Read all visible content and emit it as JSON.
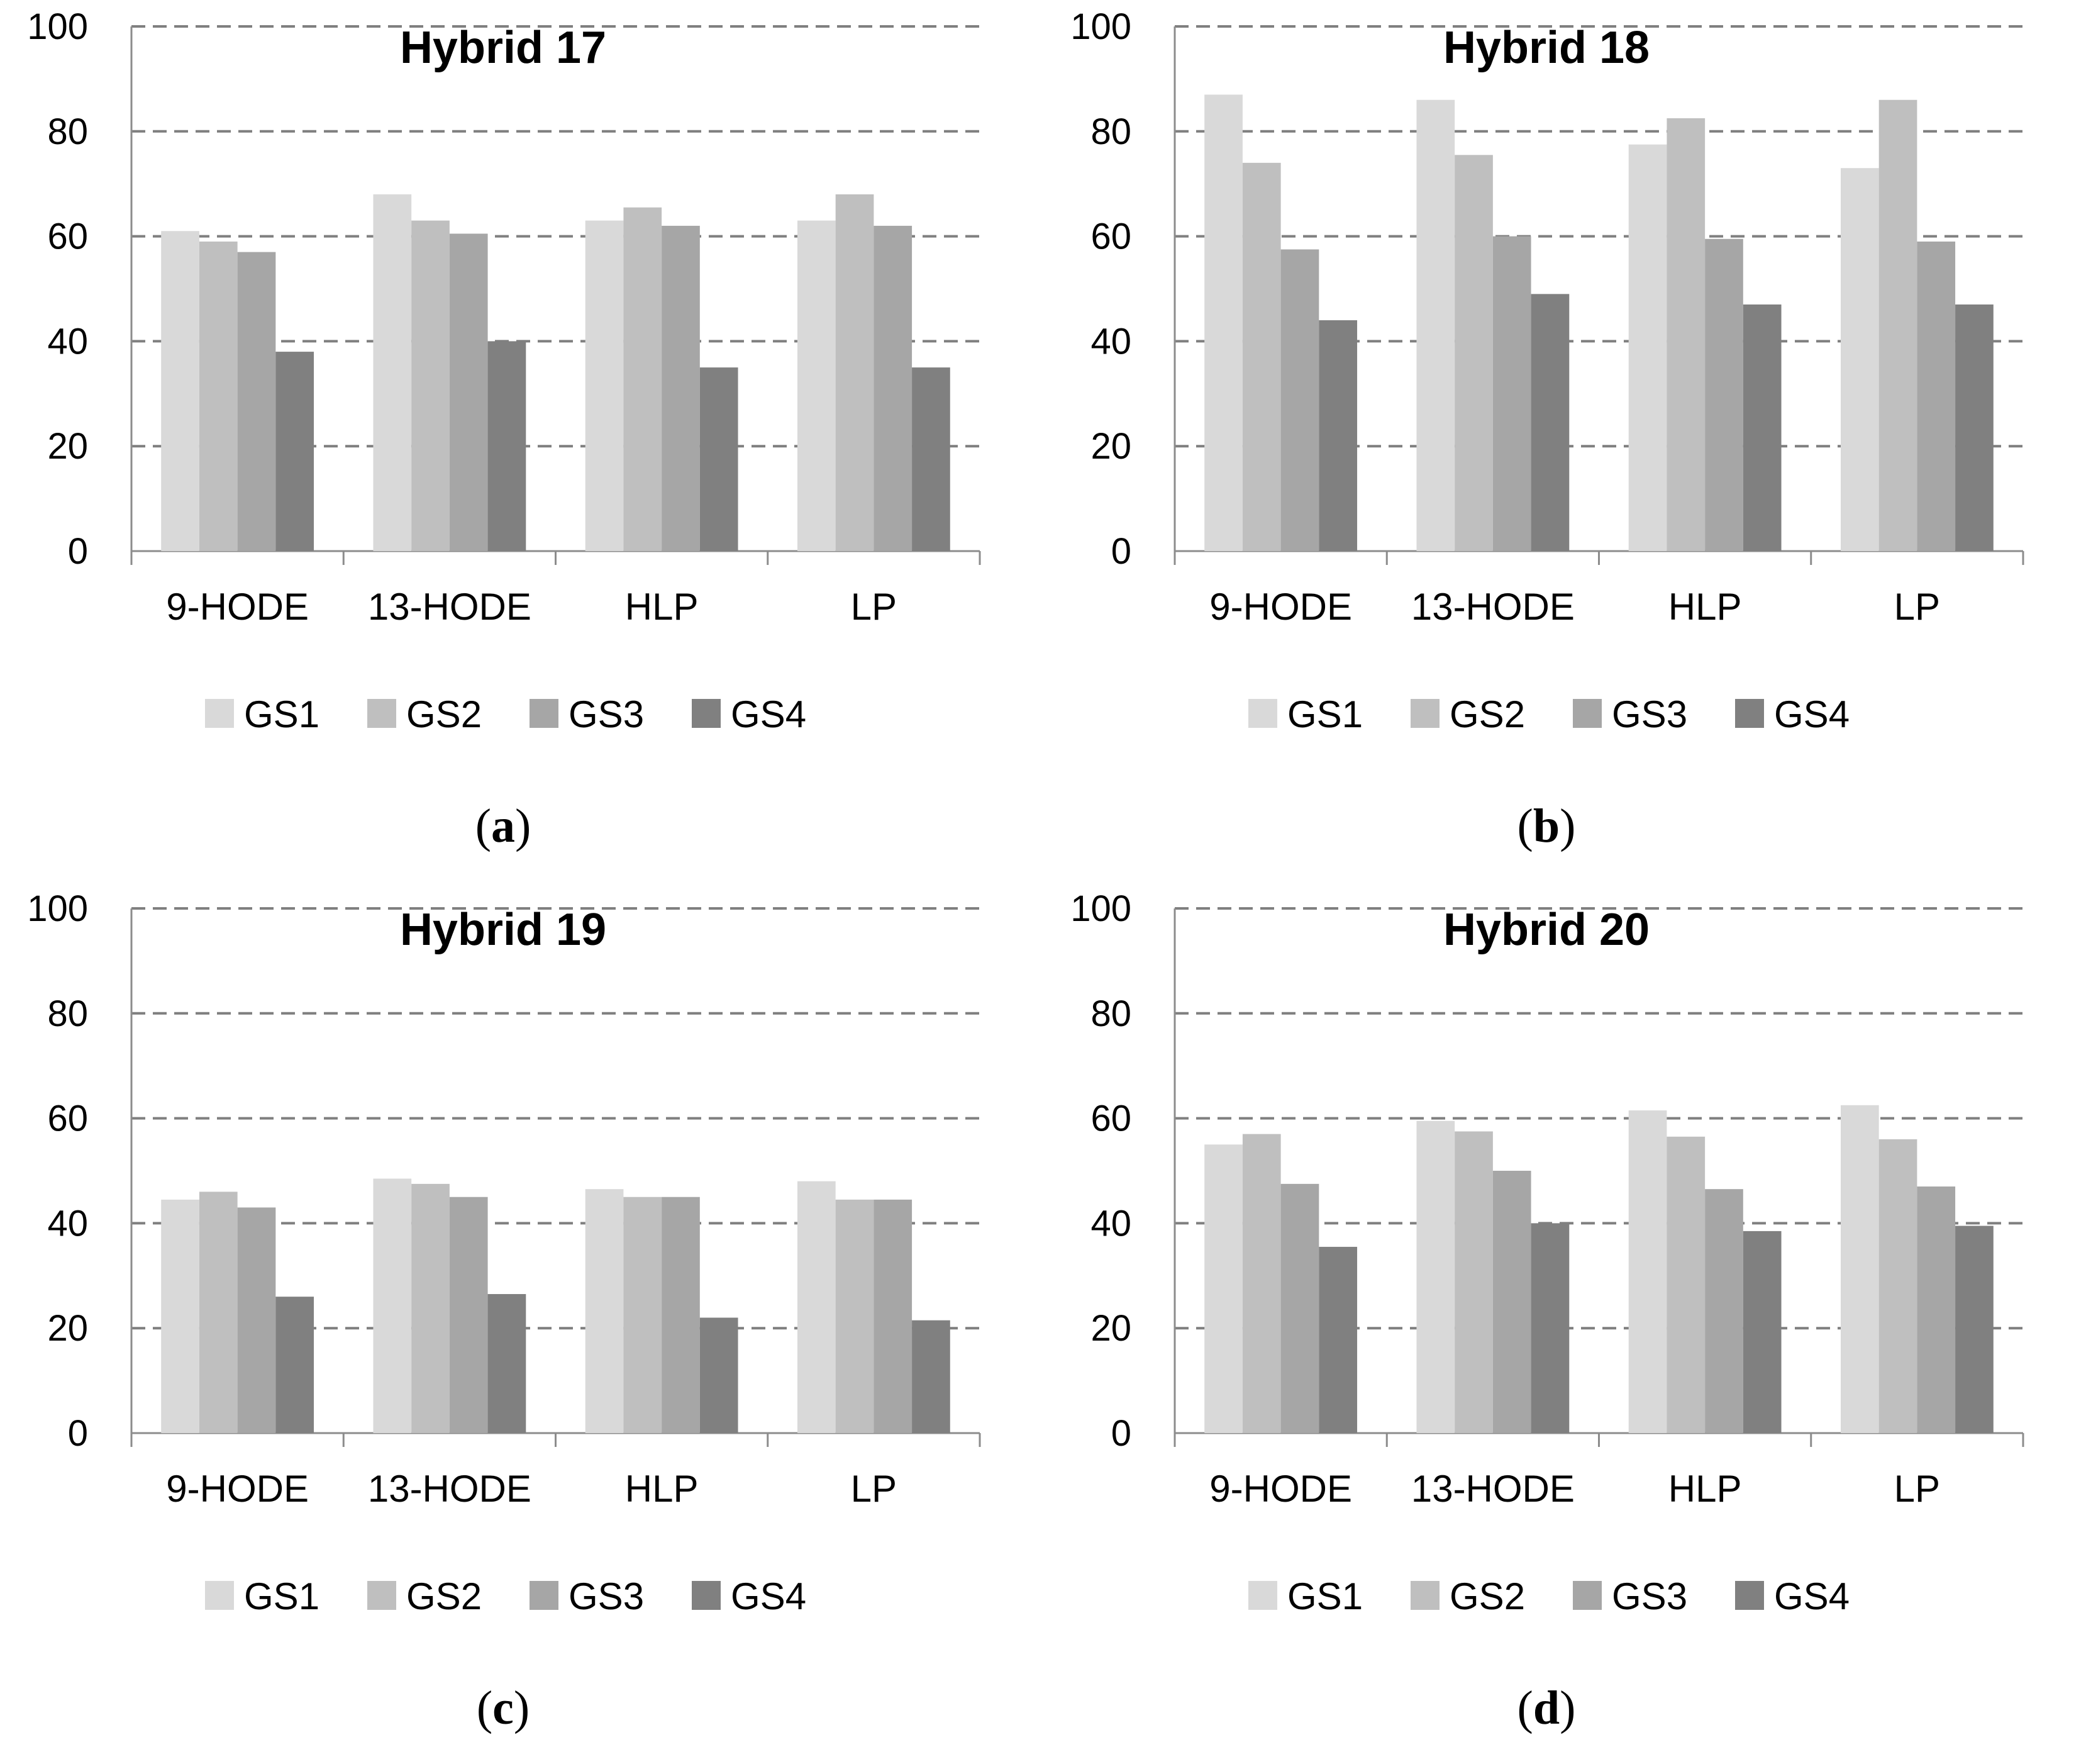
{
  "figure": {
    "panels": [
      "a",
      "b",
      "c",
      "d"
    ]
  },
  "chart_data": [
    {
      "id": "a",
      "caption_letter": "a",
      "type": "bar",
      "title": "Hybrid 17",
      "categories": [
        "9-HODE",
        "13-HODE",
        "HLP",
        "LP"
      ],
      "series": [
        {
          "name": "GS1",
          "color": "#d9d9d9",
          "values": [
            61,
            68,
            63,
            63
          ]
        },
        {
          "name": "GS2",
          "color": "#bfbfbf",
          "values": [
            59,
            63,
            65.5,
            68
          ]
        },
        {
          "name": "GS3",
          "color": "#a6a6a6",
          "values": [
            57,
            60.5,
            62,
            62
          ]
        },
        {
          "name": "GS4",
          "color": "#808080",
          "values": [
            38,
            40,
            35,
            35
          ]
        }
      ],
      "ylim": [
        0,
        100
      ],
      "yticks": [
        0,
        20,
        40,
        60,
        80,
        100
      ],
      "grid": true,
      "legend": "bottom"
    },
    {
      "id": "b",
      "caption_letter": "b",
      "type": "bar",
      "title": "Hybrid 18",
      "categories": [
        "9-HODE",
        "13-HODE",
        "HLP",
        "LP"
      ],
      "series": [
        {
          "name": "GS1",
          "color": "#d9d9d9",
          "values": [
            87,
            86,
            77.5,
            73
          ]
        },
        {
          "name": "GS2",
          "color": "#bfbfbf",
          "values": [
            74,
            75.5,
            82.5,
            86
          ]
        },
        {
          "name": "GS3",
          "color": "#a6a6a6",
          "values": [
            57.5,
            60,
            59.5,
            59
          ]
        },
        {
          "name": "GS4",
          "color": "#808080",
          "values": [
            44,
            49,
            47,
            47
          ]
        }
      ],
      "ylim": [
        0,
        100
      ],
      "yticks": [
        0,
        20,
        40,
        60,
        80,
        100
      ],
      "grid": true,
      "legend": "bottom"
    },
    {
      "id": "c",
      "caption_letter": "c",
      "type": "bar",
      "title": "Hybrid 19",
      "categories": [
        "9-HODE",
        "13-HODE",
        "HLP",
        "LP"
      ],
      "series": [
        {
          "name": "GS1",
          "color": "#d9d9d9",
          "values": [
            44.5,
            48.5,
            46.5,
            48
          ]
        },
        {
          "name": "GS2",
          "color": "#bfbfbf",
          "values": [
            46,
            47.5,
            45,
            44.5
          ]
        },
        {
          "name": "GS3",
          "color": "#a6a6a6",
          "values": [
            43,
            45,
            45,
            44.5
          ]
        },
        {
          "name": "GS4",
          "color": "#808080",
          "values": [
            26,
            26.5,
            22,
            21.5
          ]
        }
      ],
      "ylim": [
        0,
        100
      ],
      "yticks": [
        0,
        20,
        40,
        60,
        80,
        100
      ],
      "grid": true,
      "legend": "bottom"
    },
    {
      "id": "d",
      "caption_letter": "d",
      "type": "bar",
      "title": "Hybrid 20",
      "categories": [
        "9-HODE",
        "13-HODE",
        "HLP",
        "LP"
      ],
      "series": [
        {
          "name": "GS1",
          "color": "#d9d9d9",
          "values": [
            55,
            59.5,
            61.5,
            62.5
          ]
        },
        {
          "name": "GS2",
          "color": "#bfbfbf",
          "values": [
            57,
            57.5,
            56.5,
            56
          ]
        },
        {
          "name": "GS3",
          "color": "#a6a6a6",
          "values": [
            47.5,
            50,
            46.5,
            47
          ]
        },
        {
          "name": "GS4",
          "color": "#808080",
          "values": [
            35.5,
            40,
            38.5,
            39.5
          ]
        }
      ],
      "ylim": [
        0,
        100
      ],
      "yticks": [
        0,
        20,
        40,
        60,
        80,
        100
      ],
      "grid": true,
      "legend": "bottom"
    }
  ]
}
